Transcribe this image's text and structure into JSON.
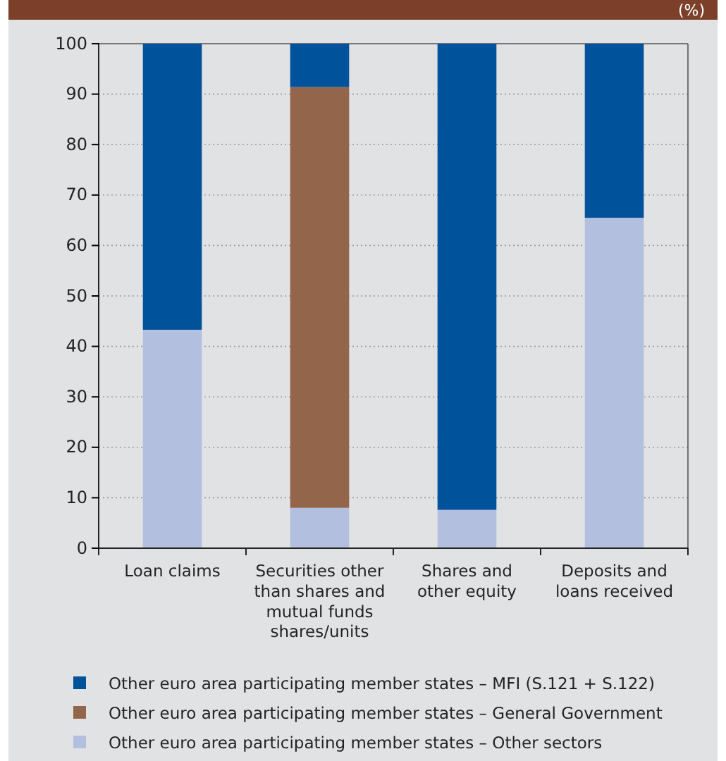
{
  "chart_data": {
    "type": "bar",
    "title": "(%)",
    "stacked": true,
    "categories": [
      "Loan claims",
      "Securities other than shares and mutual funds shares/units",
      "Shares and other equity",
      "Deposits and loans received"
    ],
    "series": [
      {
        "name": "Other euro area participating member states – Other sectors",
        "color": "#b3bfdf",
        "values": [
          43.3,
          8,
          7.6,
          65.5
        ]
      },
      {
        "name": "Other euro area participating member states – General Government",
        "color": "#93654a",
        "values": [
          0,
          83.4,
          0,
          0
        ]
      },
      {
        "name": "Other euro area participating member states – MFI (S.121 + S.122)",
        "color": "#00529b",
        "values": [
          56.7,
          8.6,
          92.4,
          34.5
        ]
      }
    ],
    "ylim": [
      0,
      100
    ],
    "yticks": [
      0,
      10,
      20,
      30,
      40,
      50,
      60,
      70,
      80,
      90,
      100
    ],
    "grid": "y",
    "legend": "bottom"
  }
}
